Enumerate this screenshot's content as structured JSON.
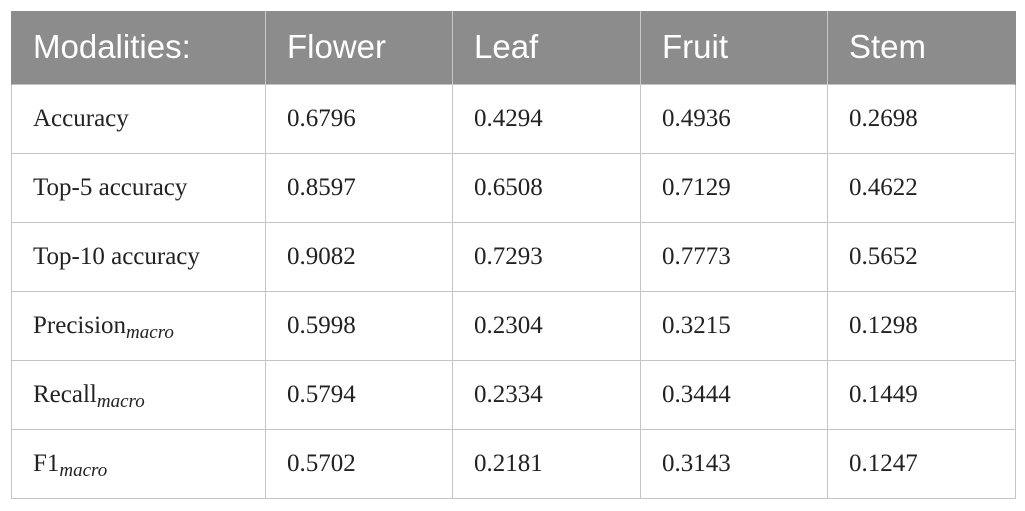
{
  "table": {
    "headers": [
      "Modalities:",
      "Flower",
      "Leaf",
      "Fruit",
      "Stem"
    ],
    "rows": [
      {
        "metric": "Accuracy",
        "subscript": "",
        "values": [
          "0.6796",
          "0.4294",
          "0.4936",
          "0.2698"
        ]
      },
      {
        "metric": "Top-5 accuracy",
        "subscript": "",
        "values": [
          "0.8597",
          "0.6508",
          "0.7129",
          "0.4622"
        ]
      },
      {
        "metric": "Top-10 accuracy",
        "subscript": "",
        "values": [
          "0.9082",
          "0.7293",
          "0.7773",
          "0.5652"
        ]
      },
      {
        "metric": "Precision",
        "subscript": "macro",
        "values": [
          "0.5998",
          "0.2304",
          "0.3215",
          "0.1298"
        ]
      },
      {
        "metric": "Recall",
        "subscript": "macro",
        "values": [
          "0.5794",
          "0.2334",
          "0.3444",
          "0.1449"
        ]
      },
      {
        "metric": "F1",
        "subscript": "macro",
        "values": [
          "0.5702",
          "0.2181",
          "0.3143",
          "0.1247"
        ]
      }
    ]
  },
  "colors": {
    "header_background": "#8c8c8c",
    "header_text": "#ffffff",
    "grid_line": "#c4c4c4",
    "body_text": "#222222"
  }
}
